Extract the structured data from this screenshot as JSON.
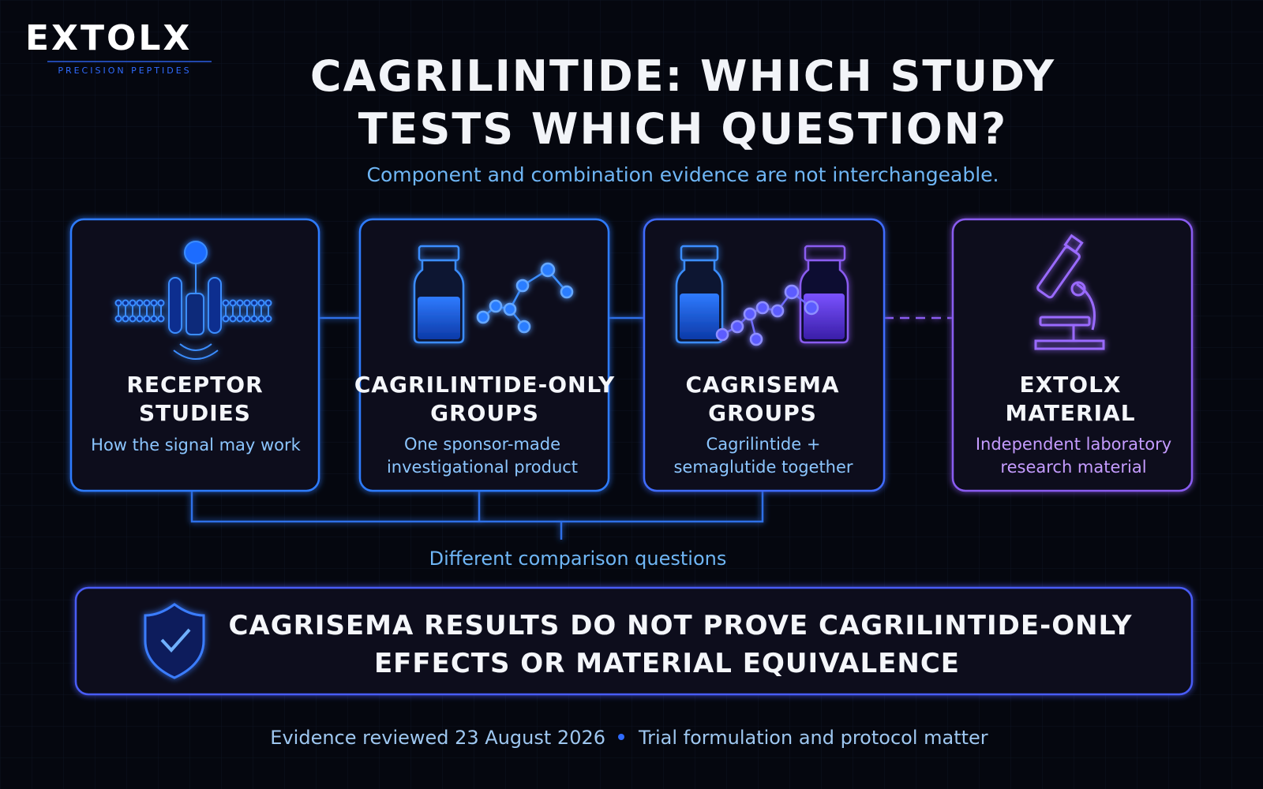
{
  "brand": {
    "name": "EXTOLX",
    "tagline": "PRECISION PEPTIDES"
  },
  "header": {
    "title_lines": [
      "CAGRILINTIDE: WHICH STUDY",
      "TESTS WHICH QUESTION?"
    ],
    "subtitle": "Component and combination evidence are not interchangeable."
  },
  "cards": [
    {
      "title_lines": [
        "RECEPTOR",
        "STUDIES"
      ],
      "text_lines": [
        "How the signal may work"
      ]
    },
    {
      "title_lines": [
        "CAGRILINTIDE-ONLY",
        "GROUPS"
      ],
      "text_lines": [
        "One sponsor-made",
        "investigational product"
      ]
    },
    {
      "title_lines": [
        "CAGRISEMA",
        "GROUPS"
      ],
      "text_lines": [
        "Cagrilintide +",
        "semaglutide together"
      ]
    },
    {
      "title_lines": [
        "EXTOLX",
        "MATERIAL"
      ],
      "text_lines": [
        "Independent laboratory",
        "research material"
      ]
    }
  ],
  "bracket_label": "Different comparison questions",
  "callout": {
    "lines": [
      "CAGRISEMA RESULTS DO NOT PROVE CAGRILINTIDE-ONLY",
      "EFFECTS OR MATERIAL EQUIVALENCE"
    ]
  },
  "footer": {
    "left": "Evidence reviewed 23 August 2026",
    "right": "Trial formulation and protocol matter"
  }
}
